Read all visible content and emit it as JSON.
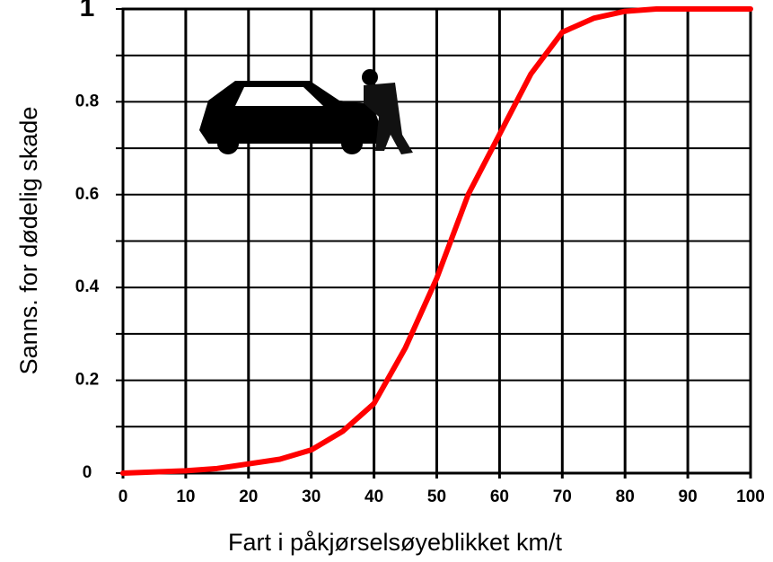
{
  "chart_data": {
    "type": "line",
    "x_label": "Fart i påkjørselsøyeblikket km/t",
    "y_label": "Sanns. for dødelig skade",
    "x": [
      0,
      10,
      15,
      20,
      25,
      30,
      35,
      40,
      45,
      50,
      55,
      60,
      65,
      70,
      75,
      80,
      85,
      90,
      100
    ],
    "series": [
      {
        "color": "#ff0000",
        "values": [
          0,
          0.005,
          0.01,
          0.02,
          0.03,
          0.05,
          0.09,
          0.15,
          0.27,
          0.42,
          0.6,
          0.73,
          0.86,
          0.95,
          0.98,
          0.995,
          1,
          1,
          1
        ]
      }
    ],
    "xlim": [
      0,
      100
    ],
    "ylim": [
      0,
      1
    ],
    "xticks": [
      0,
      10,
      20,
      30,
      40,
      50,
      60,
      70,
      80,
      90,
      100
    ],
    "yticks": [
      0,
      0.2,
      0.4,
      0.6,
      0.8,
      1
    ],
    "ygrid": [
      0,
      0.1,
      0.2,
      0.3,
      0.4,
      0.5,
      0.6,
      0.7,
      0.8,
      0.9,
      1
    ],
    "grid": true
  }
}
